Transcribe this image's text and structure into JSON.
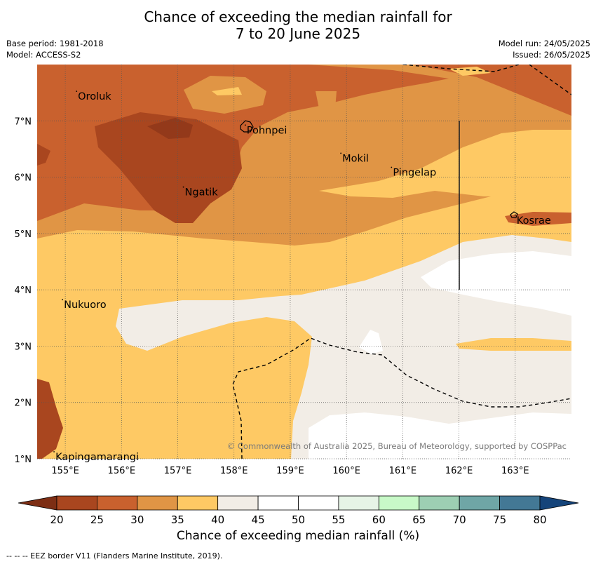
{
  "title_line1": "Chance of exceeding the median rainfall for",
  "title_line2": "7 to 20 June 2025",
  "base_period": "Base period: 1981-2018",
  "model": "Model: ACCESS-S2",
  "model_run": "Model run: 24/05/2025",
  "issued": "Issued: 26/05/2025",
  "copyright": "© Commonwealth of Australia 2025, Bureau of Meteorology, supported by COSPPac",
  "footnote": "--  --  -- EEZ border V11 (Flanders Marine Institute, 2019).",
  "colorbar_label": "Chance of exceeding median rainfall (%)",
  "map": {
    "lon_range": [
      154.5,
      164.0
    ],
    "lat_range": [
      1.0,
      8.0
    ],
    "lon_ticks": [
      {
        "value": 155,
        "label": "155°E"
      },
      {
        "value": 156,
        "label": "156°E"
      },
      {
        "value": 157,
        "label": "157°E"
      },
      {
        "value": 158,
        "label": "158°E"
      },
      {
        "value": 159,
        "label": "159°E"
      },
      {
        "value": 160,
        "label": "160°E"
      },
      {
        "value": 161,
        "label": "161°E"
      },
      {
        "value": 162,
        "label": "162°E"
      },
      {
        "value": 163,
        "label": "163°E"
      }
    ],
    "lat_ticks": [
      {
        "value": 1,
        "label": "1°N"
      },
      {
        "value": 2,
        "label": "2°N"
      },
      {
        "value": 3,
        "label": "3°N"
      },
      {
        "value": 4,
        "label": "4°N"
      },
      {
        "value": 5,
        "label": "5°N"
      },
      {
        "value": 6,
        "label": "6°N"
      },
      {
        "value": 7,
        "label": "7°N"
      }
    ],
    "places": [
      {
        "name": "Oroluk",
        "lon": 155.2,
        "lat": 7.5
      },
      {
        "name": "Pohnpei",
        "lon": 158.2,
        "lat": 6.9
      },
      {
        "name": "Mokil",
        "lon": 159.9,
        "lat": 6.4
      },
      {
        "name": "Pingelap",
        "lon": 160.8,
        "lat": 6.15
      },
      {
        "name": "Ngatik",
        "lon": 157.1,
        "lat": 5.8
      },
      {
        "name": "Kosrae",
        "lon": 163.0,
        "lat": 5.3
      },
      {
        "name": "Nukuoro",
        "lon": 154.95,
        "lat": 3.8
      },
      {
        "name": "Kapingamarangi",
        "lon": 154.8,
        "lat": 1.1
      }
    ]
  },
  "colorbar": {
    "ticks": [
      {
        "value": 20,
        "label": "20",
        "color": "#a9461f"
      },
      {
        "value": 25,
        "label": "25",
        "color": "#c9612e"
      },
      {
        "value": 30,
        "label": "30",
        "color": "#e09545"
      },
      {
        "value": 35,
        "label": "35",
        "color": "#fec964"
      },
      {
        "value": 40,
        "label": "40",
        "color": "#f2ede6"
      },
      {
        "value": 45,
        "label": "45",
        "color": "#ffffff"
      },
      {
        "value": 50,
        "label": "50",
        "color": "#ffffff"
      },
      {
        "value": 55,
        "label": "55",
        "color": "#e6f4e6"
      },
      {
        "value": 60,
        "label": "60",
        "color": "#c8f9c8"
      },
      {
        "value": 65,
        "label": "65",
        "color": "#9dcfb3"
      },
      {
        "value": 70,
        "label": "70",
        "color": "#6fa6a6"
      },
      {
        "value": 75,
        "label": "75",
        "color": "#437895"
      },
      {
        "value": 80,
        "label": "80",
        "color": "#1f4f86"
      }
    ],
    "under_color": "#7d2e14",
    "over_color": "#15447a"
  }
}
